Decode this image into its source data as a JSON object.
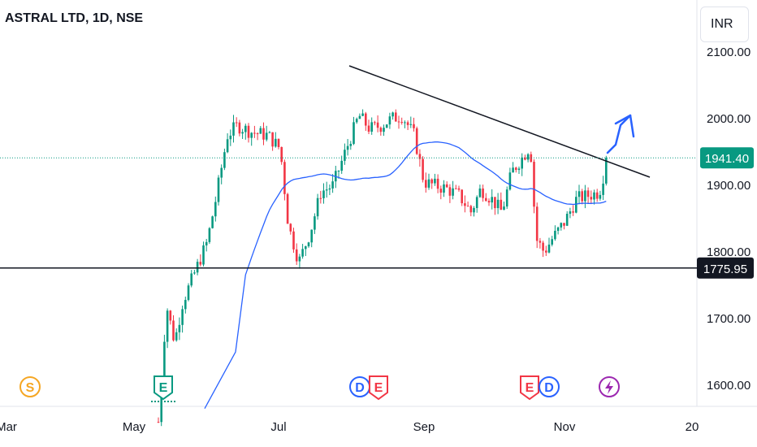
{
  "header": {
    "title": "ASTRAL LTD, 1D, NSE",
    "currency": "INR"
  },
  "chart_data": {
    "type": "candlestick",
    "symbol": "ASTRAL LTD",
    "interval": "1D",
    "exchange": "NSE",
    "y_ticks": [
      "2100.00",
      "2000.00",
      "1900.00",
      "1800.00",
      "1700.00",
      "1600.00"
    ],
    "y_tick_values": [
      2100,
      2000,
      1900,
      1800,
      1700,
      1600
    ],
    "x_ticks": [
      "Mar",
      "May",
      "Jul",
      "Sep",
      "Nov",
      "20"
    ],
    "current_price": {
      "label": "1941.40",
      "value": 1941.4,
      "color": "#089981"
    },
    "support_level": {
      "label": "1775.95",
      "value": 1775.95
    },
    "colors": {
      "up": "#089981",
      "down": "#f23645",
      "ma": "#2962ff",
      "arrow": "#2962ff",
      "line": "#131722"
    },
    "events": [
      {
        "label": "S",
        "kind": "split",
        "color": "#f5a623",
        "date": "Mar"
      },
      {
        "label": "E",
        "kind": "earnings",
        "color": "#089981",
        "date": "May"
      },
      {
        "label": "D",
        "kind": "dividend",
        "color": "#2962ff",
        "date": "Aug"
      },
      {
        "label": "E",
        "kind": "earnings",
        "color": "#f23645",
        "date": "Aug"
      },
      {
        "label": "E",
        "kind": "earnings",
        "color": "#f23645",
        "date": "Oct"
      },
      {
        "label": "D",
        "kind": "dividend",
        "color": "#2962ff",
        "date": "Oct"
      },
      {
        "label": "lightning-icon",
        "kind": "event",
        "color": "#9c27b0",
        "date": "Nov"
      }
    ]
  }
}
